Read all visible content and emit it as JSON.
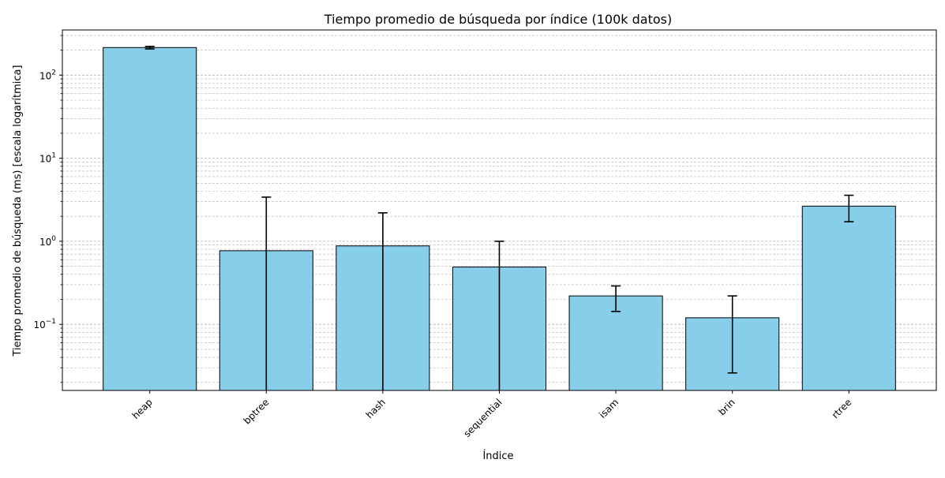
{
  "chart_data": {
    "type": "bar",
    "title": "Tiempo promedio de búsqueda por índice (100k datos)",
    "xlabel": "Índice",
    "ylabel": "Tiempo promedio de búsqueda (ms) [escala logarítmica]",
    "yscale": "log",
    "ylim": [
      0.016,
      350
    ],
    "y_ticks": [
      {
        "value": 0.1,
        "base": "10",
        "exp": "−1"
      },
      {
        "value": 1,
        "base": "10",
        "exp": "0"
      },
      {
        "value": 10,
        "base": "10",
        "exp": "1"
      },
      {
        "value": 100,
        "base": "10",
        "exp": "2"
      }
    ],
    "grid": "both major and minor horizontal, dashed",
    "categories": [
      "heap",
      "bptree",
      "hash",
      "sequential",
      "isam",
      "brin",
      "rtree"
    ],
    "values": [
      215,
      0.77,
      0.88,
      0.49,
      0.22,
      0.12,
      2.65
    ],
    "error_low": [
      207,
      0.001,
      0.001,
      0.001,
      0.143,
      0.026,
      1.72
    ],
    "error_high": [
      222,
      3.4,
      2.2,
      1.0,
      0.29,
      0.22,
      3.58
    ],
    "bar_color": "#87ceeb",
    "edge_color": "#000000"
  }
}
